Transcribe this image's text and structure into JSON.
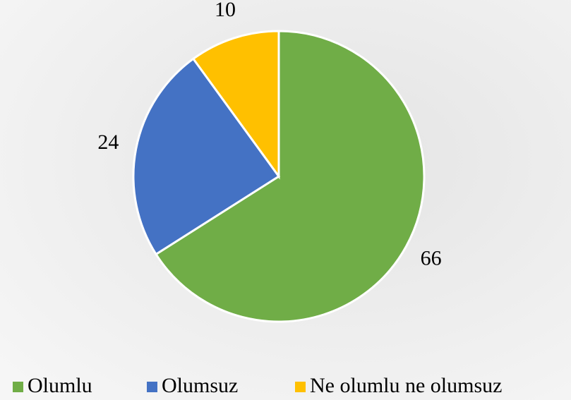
{
  "chart_data": {
    "type": "pie",
    "categories": [
      "Olumlu",
      "Olumsuz",
      "Ne olumlu ne olumsuz"
    ],
    "values": [
      66,
      24,
      10
    ],
    "colors": [
      "#70ad47",
      "#4472c4",
      "#ffc000"
    ],
    "legend": "bottom"
  }
}
